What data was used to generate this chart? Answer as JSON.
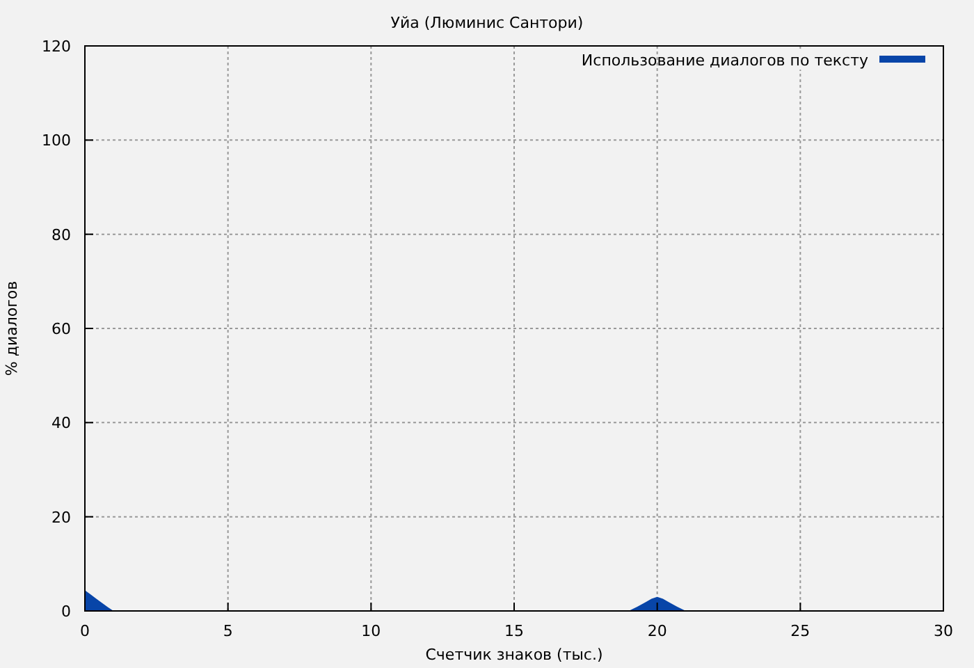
{
  "chart_data": {
    "type": "area",
    "title": "Уйа (Люминис Сантори)",
    "xlabel": "Счетчик знаков (тыс.)",
    "ylabel": "% диалогов",
    "x": [
      0,
      0.2,
      0.4,
      0.6,
      0.8,
      1,
      19,
      19.3,
      19.6,
      19.8,
      20,
      20.2,
      20.4,
      20.7,
      21,
      29.9
    ],
    "series": [
      {
        "name": "Использование диалогов по тексту",
        "color": "#0845a8",
        "values": [
          4.4,
          3.5,
          2.6,
          1.7,
          0.8,
          0,
          0,
          0.9,
          1.9,
          2.6,
          3,
          2.6,
          1.9,
          0.9,
          0,
          0
        ]
      }
    ],
    "xlim": [
      0,
      30
    ],
    "ylim": [
      0,
      120
    ],
    "xticks": [
      0,
      5,
      10,
      15,
      20,
      25,
      30
    ],
    "yticks": [
      0,
      20,
      40,
      60,
      80,
      100,
      120
    ],
    "grid": true,
    "legend": "top right"
  }
}
